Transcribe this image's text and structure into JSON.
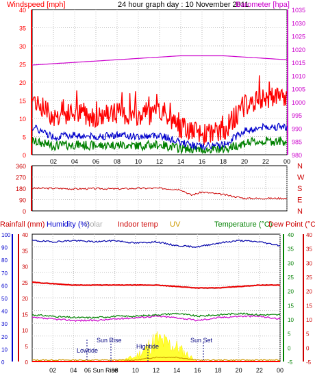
{
  "title": "24 hour graph day : 10 November 2011",
  "panel1": {
    "left_label": "Windspeed [mph]",
    "right_label": "Barometer [hpa]",
    "left_ticks": [
      "0",
      "5",
      "10",
      "15",
      "20",
      "25",
      "30",
      "35",
      "40"
    ],
    "right_ticks": [
      "980",
      "985",
      "990",
      "995",
      "1000",
      "1005",
      "1010",
      "1015",
      "1020",
      "1025",
      "1030",
      "1035"
    ],
    "colors": {
      "gust": "#ff0000",
      "avg": "#0000cc",
      "min": "#008000",
      "baro": "#cc00cc"
    }
  },
  "panel2": {
    "left_ticks": [
      "0",
      "90",
      "180",
      "270",
      "360"
    ],
    "compass": [
      "N",
      "W",
      "S",
      "E",
      "N"
    ],
    "color": "#cc0000"
  },
  "panel3": {
    "labels": {
      "rain": "Rainfall (mm)",
      "humidity": "Humidity (%)",
      "solar": "Solar",
      "indoor": "Indoor temp",
      "uv": "UV",
      "temperature": "Temperature (°C)",
      "dewpoint": "Dew Point (°C)"
    },
    "left_ticks": [
      "0",
      "5",
      "10",
      "15",
      "20",
      "25",
      "30",
      "35",
      "40"
    ],
    "humidity_ticks": [
      "0",
      "10",
      "20",
      "30",
      "40",
      "50",
      "60",
      "70",
      "80",
      "90",
      "100"
    ],
    "right_ticks1": [
      "-5",
      "0",
      "5",
      "10",
      "15",
      "20",
      "25",
      "30",
      "35",
      "40"
    ],
    "right_ticks2": [
      "-5",
      "0",
      "5",
      "10",
      "15",
      "20",
      "25",
      "30",
      "35",
      "40"
    ],
    "annotations": {
      "lowtide": "Lowtide",
      "sunrise": "Sun Rise",
      "hightide": "Hightide",
      "sunset": "Sun Set"
    }
  },
  "x_ticks": [
    "02",
    "04",
    "06",
    "08",
    "10",
    "12",
    "14",
    "16",
    "18",
    "20",
    "22",
    "00"
  ],
  "x_ticks_bottom": [
    "02",
    "04",
    "06",
    "08",
    "10",
    "12",
    "14",
    "16",
    "18",
    "20",
    "22",
    "00"
  ],
  "sunrise_tick": "06 Sun Rise",
  "chart_data": [
    {
      "type": "line",
      "title": "24 hour graph day : 10 November 2011",
      "x_range": [
        0,
        24
      ],
      "series": [
        {
          "name": "Windspeed [mph]",
          "axis": "left",
          "x": [
            0,
            2,
            4,
            6,
            8,
            10,
            12,
            14,
            16,
            18,
            20,
            22,
            24
          ],
          "values": [
            14,
            9,
            10,
            9,
            10,
            9,
            10,
            6,
            4,
            5,
            12,
            14,
            14
          ]
        },
        {
          "name": "Barometer [hpa]",
          "axis": "right",
          "x": [
            0,
            2,
            4,
            6,
            8,
            10,
            12,
            14,
            16,
            18,
            20,
            22,
            24
          ],
          "values": [
            1014,
            1014.5,
            1015,
            1015.5,
            1016,
            1016.5,
            1017,
            1017.5,
            1017.5,
            1017.5,
            1017,
            1016.5,
            1016
          ]
        }
      ],
      "ylim_left": [
        0,
        40
      ],
      "ylim_right": [
        980,
        1035
      ]
    },
    {
      "type": "line",
      "x_range": [
        0,
        24
      ],
      "series": [
        {
          "name": "Wind direction",
          "x": [
            0,
            2,
            4,
            6,
            8,
            10,
            12,
            14,
            15,
            16,
            18,
            20,
            22,
            24
          ],
          "values": [
            180,
            180,
            175,
            178,
            175,
            180,
            180,
            170,
            125,
            150,
            130,
            100,
            100,
            100
          ]
        }
      ],
      "ylim": [
        0,
        360
      ]
    },
    {
      "type": "line",
      "x_range": [
        0,
        24
      ],
      "series": [
        {
          "name": "Humidity (%)",
          "axis": "humidity",
          "x": [
            0,
            2,
            4,
            6,
            8,
            10,
            12,
            14,
            16,
            18,
            20,
            22,
            24
          ],
          "values": [
            95,
            94,
            95,
            94,
            95,
            93,
            94,
            91,
            90,
            93,
            95,
            94,
            91
          ]
        },
        {
          "name": "Indoor temp",
          "axis": "temp",
          "x": [
            0,
            2,
            4,
            6,
            8,
            10,
            12,
            14,
            16,
            18,
            20,
            22,
            24
          ],
          "values": [
            23,
            22.5,
            22,
            22,
            22,
            22,
            22,
            21.5,
            21,
            21,
            21.5,
            22,
            22
          ]
        },
        {
          "name": "Temperature (°C)",
          "axis": "temp",
          "x": [
            0,
            2,
            4,
            6,
            8,
            10,
            12,
            14,
            16,
            18,
            20,
            22,
            24
          ],
          "values": [
            11.5,
            11,
            10.5,
            10.5,
            11,
            11,
            11.5,
            12,
            11,
            11.5,
            12,
            11.5,
            11.5
          ]
        },
        {
          "name": "Dew Point (°C)",
          "axis": "temp",
          "x": [
            0,
            2,
            4,
            6,
            8,
            10,
            12,
            14,
            16,
            18,
            20,
            22,
            24
          ],
          "values": [
            10.5,
            10,
            9.5,
            9.5,
            10,
            10.5,
            11,
            10.5,
            9.5,
            10.5,
            11,
            11,
            10
          ]
        },
        {
          "name": "Solar",
          "axis": "humidity",
          "x": [
            0,
            2,
            4,
            6,
            8,
            10,
            12,
            14,
            16,
            18,
            20,
            22,
            24
          ],
          "values": [
            0,
            0,
            0,
            0,
            0,
            2,
            9,
            6,
            0,
            0,
            0,
            0,
            0
          ]
        },
        {
          "name": "UV",
          "axis": "temp",
          "x": [
            0,
            4,
            6,
            8,
            10,
            12,
            14,
            16,
            18,
            24
          ],
          "values": [
            -4.5,
            -4.5,
            -4.5,
            -4.5,
            -4.5,
            -3.5,
            -3.5,
            -4.5,
            -4.5,
            -4.5
          ]
        },
        {
          "name": "Rainfall (mm)",
          "axis": "left",
          "x": [
            0,
            24
          ],
          "values": [
            0,
            0
          ]
        }
      ],
      "ylim_left": [
        0,
        40
      ],
      "ylim_humidity": [
        0,
        100
      ],
      "ylim_temp": [
        -5,
        40
      ]
    }
  ]
}
